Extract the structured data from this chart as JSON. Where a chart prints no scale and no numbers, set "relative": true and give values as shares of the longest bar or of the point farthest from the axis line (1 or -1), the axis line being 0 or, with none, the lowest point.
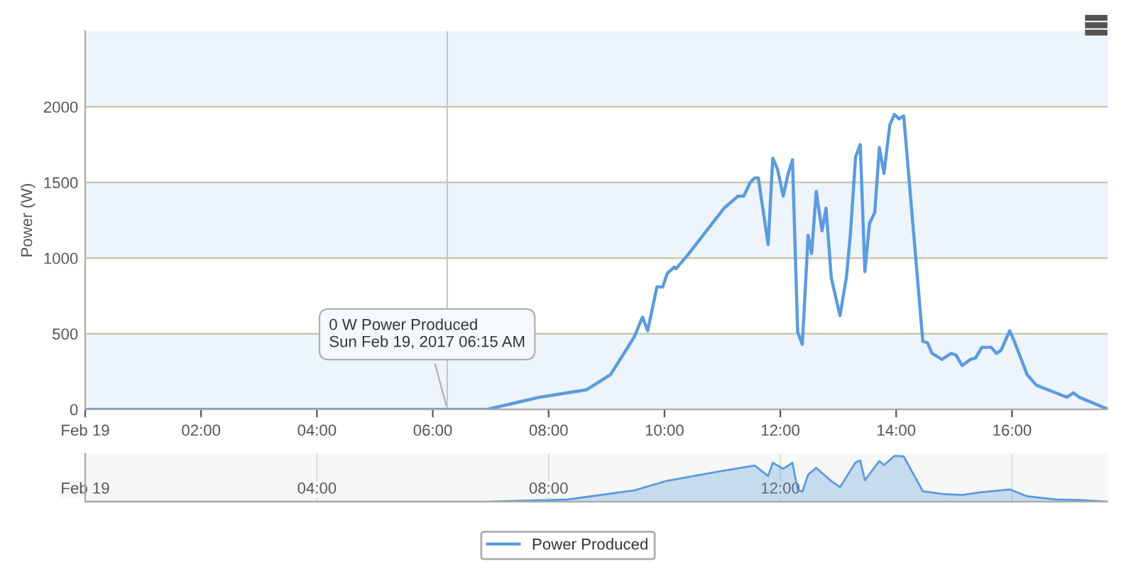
{
  "chart_data": [
    {
      "type": "line",
      "ylabel": "Power (W)",
      "xlim": [
        0,
        17.65
      ],
      "ylim": [
        0,
        2500
      ],
      "xticks": [
        {
          "value": 0,
          "label": "Feb 19"
        },
        {
          "value": 2,
          "label": "02:00"
        },
        {
          "value": 4,
          "label": "04:00"
        },
        {
          "value": 6,
          "label": "06:00"
        },
        {
          "value": 8,
          "label": "08:00"
        },
        {
          "value": 10,
          "label": "10:00"
        },
        {
          "value": 12,
          "label": "12:00"
        },
        {
          "value": 14,
          "label": "14:00"
        },
        {
          "value": 16,
          "label": "16:00"
        }
      ],
      "yticks": [
        0,
        500,
        1000,
        1500,
        2000
      ],
      "grid": "y",
      "legend": "bottom",
      "marker": "none",
      "line_style": "solid",
      "bands": [
        {
          "axis": "y",
          "from": 0,
          "to": 500,
          "color": "#edf4fb"
        },
        {
          "axis": "y",
          "from": 1000,
          "to": 1500,
          "color": "#edf4fb"
        },
        {
          "axis": "y",
          "from": 2000,
          "to": 2500,
          "color": "#edf4fb"
        }
      ],
      "ref_lines": [
        {
          "axis": "x",
          "value": 6.25,
          "color": "#c8c8c8"
        }
      ],
      "annotations": [
        {
          "text": "0 W Power Produced\nSun Feb 19, 2017 06:15 AM",
          "x": 6.25,
          "y": 0
        }
      ],
      "series": [
        {
          "name": "Power Produced",
          "color": "#5b9bdf",
          "x": [
            0,
            6.25,
            6.94,
            7.5,
            7.84,
            8.33,
            8.66,
            9.07,
            9.48,
            9.62,
            9.71,
            9.87,
            9.97,
            10.05,
            10.17,
            10.2,
            10.38,
            11.03,
            11.27,
            11.37,
            11.48,
            11.56,
            11.62,
            11.79,
            11.87,
            11.95,
            12.05,
            12.13,
            12.21,
            12.3,
            12.38,
            12.48,
            12.54,
            12.62,
            12.72,
            12.79,
            12.88,
            13.03,
            13.14,
            13.21,
            13.3,
            13.38,
            13.46,
            13.54,
            13.63,
            13.71,
            13.79,
            13.89,
            13.97,
            14.05,
            14.13,
            14.46,
            14.54,
            14.62,
            14.79,
            14.95,
            15.03,
            15.14,
            15.28,
            15.37,
            15.48,
            15.64,
            15.73,
            15.81,
            15.96,
            16.05,
            16.26,
            16.42,
            16.75,
            16.95,
            17.06,
            17.16,
            17.6,
            17.65
          ],
          "values": [
            0,
            0,
            0,
            50,
            80,
            110,
            130,
            230,
            480,
            610,
            520,
            810,
            810,
            900,
            940,
            930,
            1010,
            1330,
            1410,
            1410,
            1500,
            1530,
            1530,
            1090,
            1660,
            1590,
            1410,
            1550,
            1650,
            510,
            430,
            1150,
            1030,
            1440,
            1180,
            1330,
            870,
            620,
            870,
            1160,
            1670,
            1750,
            910,
            1230,
            1300,
            1730,
            1560,
            1880,
            1950,
            1920,
            1940,
            450,
            440,
            370,
            330,
            370,
            360,
            290,
            330,
            340,
            410,
            410,
            370,
            390,
            520,
            440,
            230,
            160,
            110,
            80,
            110,
            80,
            10,
            0
          ]
        }
      ]
    },
    {
      "type": "area",
      "relative": true,
      "tick_labels": "x",
      "grid": "x",
      "xlim": [
        0,
        17.65
      ],
      "xticks": [
        {
          "value": 0,
          "label": "Feb 19"
        },
        {
          "value": 4,
          "label": "04:00"
        },
        {
          "value": 8,
          "label": "08:00"
        },
        {
          "value": 12,
          "label": "12:00"
        },
        {
          "value": 16,
          "label": null
        }
      ],
      "series": [
        {
          "color": "#5b9bdf",
          "x": [
            0,
            6.94,
            8.33,
            9.48,
            10.05,
            11.03,
            11.56,
            11.79,
            11.87,
            12.05,
            12.21,
            12.3,
            12.38,
            12.48,
            12.62,
            12.88,
            13.03,
            13.3,
            13.38,
            13.46,
            13.71,
            13.79,
            13.97,
            14.13,
            14.46,
            14.79,
            15.14,
            15.48,
            15.96,
            16.26,
            16.75,
            17.16,
            17.65
          ],
          "values": [
            0,
            0,
            0.05,
            0.25,
            0.46,
            0.68,
            0.79,
            0.56,
            0.85,
            0.72,
            0.85,
            0.26,
            0.22,
            0.59,
            0.74,
            0.45,
            0.32,
            0.86,
            0.9,
            0.47,
            0.89,
            0.8,
            1,
            0.99,
            0.23,
            0.17,
            0.15,
            0.21,
            0.27,
            0.12,
            0.05,
            0.04,
            0
          ]
        }
      ]
    }
  ]
}
